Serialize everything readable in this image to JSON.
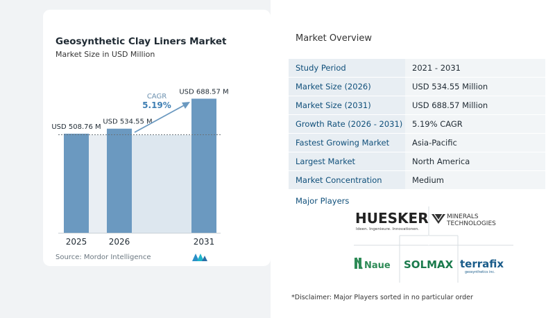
{
  "chart_data": {
    "type": "bar",
    "title": "Geosynthetic Clay Liners Market",
    "subtitle": "Market Size in USD Million",
    "categories": [
      "2025",
      "2026",
      "2031"
    ],
    "values": [
      508.76,
      534.55,
      688.57
    ],
    "data_labels": [
      "USD 508.76 M",
      "USD 534.55 M",
      "USD 688.57 M"
    ],
    "cagr_label": "CAGR",
    "cagr_value": "5.19%",
    "colors": {
      "bar": "#6b99c0",
      "bar_dark": "#5a87ae",
      "area": "#dde7ef",
      "arrow": "#6b99c0",
      "cagr": "#3f7fb3"
    }
  },
  "source": "Source:  Mordor Intelligence",
  "overview": {
    "title": "Market Overview",
    "rows": [
      {
        "key": "Study Period",
        "value": "2021 - 2031"
      },
      {
        "key": "Market Size (2026)",
        "value": "USD 534.55 Million"
      },
      {
        "key": "Market Size (2031)",
        "value": "USD 688.57 Million"
      },
      {
        "key": "Growth Rate (2026 - 2031)",
        "value": "5.19% CAGR"
      },
      {
        "key": "Fastest Growing Market",
        "value": "Asia-Pacific"
      },
      {
        "key": "Largest Market",
        "value": "North America"
      },
      {
        "key": "Market Concentration",
        "value": "Medium"
      }
    ]
  },
  "players": {
    "title": "Major Players",
    "huesker": "HUESKER",
    "huesker_tagline": "Ideen. Ingenieure. Innovationen.",
    "minerals_line1": "MINERALS",
    "minerals_line2": "TECHNOLOGIES",
    "naue": "Naue",
    "solmax": "SOLMAX",
    "terrafix": "terrafix",
    "terrafix_tagline": "geosynthetics inc."
  },
  "disclaimer": "*Disclaimer: Major Players sorted in no particular order"
}
